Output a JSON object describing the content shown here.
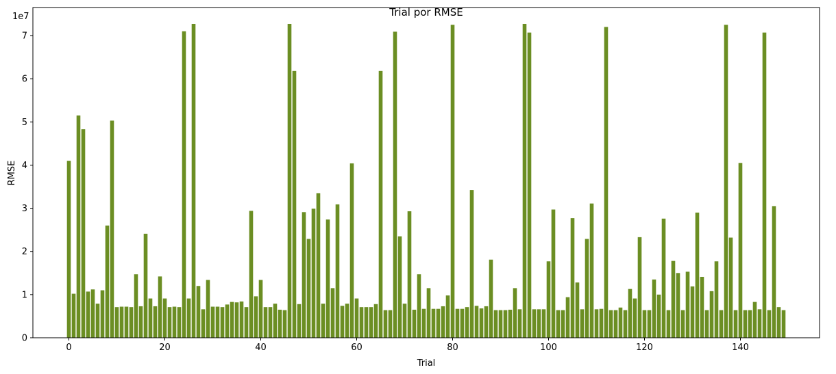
{
  "chart_data": {
    "type": "bar",
    "title": "Trial por RMSE",
    "xlabel": "Trial",
    "ylabel": "RMSE",
    "y_multiplier_label": "1e7",
    "y_tick_labels": [
      "0",
      "1",
      "2",
      "3",
      "4",
      "5",
      "6",
      "7"
    ],
    "x_tick_labels": [
      "0",
      "20",
      "40",
      "60",
      "80",
      "100",
      "120",
      "140"
    ],
    "xlim": [
      -7.5,
      156.5
    ],
    "ylim": [
      0,
      76500000
    ],
    "bar_color": "#6b8e23",
    "grid": false,
    "x": [
      0,
      1,
      2,
      3,
      4,
      5,
      6,
      7,
      8,
      9,
      10,
      11,
      12,
      13,
      14,
      15,
      16,
      17,
      18,
      19,
      20,
      21,
      22,
      23,
      24,
      25,
      26,
      27,
      28,
      29,
      30,
      31,
      32,
      33,
      34,
      35,
      36,
      37,
      38,
      39,
      40,
      41,
      42,
      43,
      44,
      45,
      46,
      47,
      48,
      49,
      50,
      51,
      52,
      53,
      54,
      55,
      56,
      57,
      58,
      59,
      60,
      61,
      62,
      63,
      64,
      65,
      66,
      67,
      68,
      69,
      70,
      71,
      72,
      73,
      74,
      75,
      76,
      77,
      78,
      79,
      80,
      81,
      82,
      83,
      84,
      85,
      86,
      87,
      88,
      89,
      90,
      91,
      92,
      93,
      94,
      95,
      96,
      97,
      98,
      99,
      100,
      101,
      102,
      103,
      104,
      105,
      106,
      107,
      108,
      109,
      110,
      111,
      112,
      113,
      114,
      115,
      116,
      117,
      118,
      119,
      120,
      121,
      122,
      123,
      124,
      125,
      126,
      127,
      128,
      129,
      130,
      131,
      132,
      133,
      134,
      135,
      136,
      137,
      138,
      139,
      140,
      141,
      142,
      143,
      144,
      145,
      146,
      147,
      148,
      149
    ],
    "values": [
      41000000,
      10200000,
      51500000,
      48300000,
      10700000,
      11200000,
      7900000,
      11000000,
      26000000,
      50300000,
      7100000,
      7200000,
      7200000,
      7100000,
      14700000,
      7300000,
      24100000,
      9100000,
      7300000,
      14200000,
      9100000,
      7100000,
      7200000,
      7100000,
      71000000,
      9100000,
      72700000,
      12000000,
      6600000,
      13400000,
      7200000,
      7200000,
      7100000,
      7700000,
      8300000,
      8200000,
      8400000,
      7100000,
      29400000,
      9600000,
      13400000,
      7100000,
      7100000,
      7900000,
      6500000,
      6400000,
      72700000,
      61800000,
      7800000,
      29100000,
      22900000,
      29900000,
      33500000,
      7900000,
      27400000,
      11500000,
      30900000,
      7400000,
      7900000,
      40400000,
      9100000,
      7100000,
      7100000,
      7100000,
      7800000,
      61800000,
      6400000,
      6400000,
      70900000,
      23500000,
      7900000,
      29300000,
      6500000,
      14700000,
      6700000,
      11500000,
      6700000,
      6700000,
      7300000,
      9800000,
      72500000,
      6700000,
      6700000,
      7100000,
      34200000,
      7400000,
      6800000,
      7300000,
      18100000,
      6400000,
      6400000,
      6400000,
      6500000,
      11500000,
      6600000,
      72700000,
      70700000,
      6600000,
      6600000,
      6600000,
      17700000,
      29700000,
      6400000,
      6400000,
      9400000,
      27700000,
      12800000,
      6600000,
      22900000,
      31100000,
      6600000,
      6700000,
      72000000,
      6400000,
      6400000,
      7000000,
      6400000,
      11300000,
      9100000,
      23300000,
      6400000,
      6400000,
      13500000,
      10000000,
      27600000,
      6400000,
      17800000,
      15000000,
      6400000,
      15300000,
      11900000,
      29000000,
      14100000,
      6400000,
      10800000,
      17700000,
      6400000,
      72500000,
      23200000,
      6400000,
      40500000,
      6400000,
      6400000,
      8300000,
      6600000,
      70700000,
      6400000,
      30500000,
      7100000,
      6400000
    ]
  }
}
